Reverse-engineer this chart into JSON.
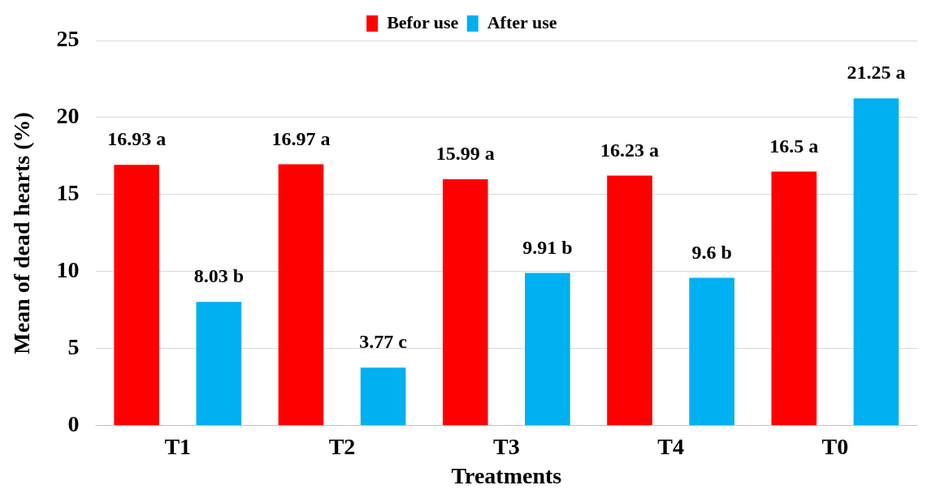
{
  "chart_data": {
    "type": "bar",
    "xlabel": "Treatments",
    "ylabel": "Mean of dead hearts (%)",
    "categories": [
      "T1",
      "T2",
      "T3",
      "T4",
      "T0"
    ],
    "series": [
      {
        "name": "Befor use",
        "color": "#ff0000",
        "values": [
          16.93,
          16.97,
          15.99,
          16.23,
          16.5
        ],
        "value_labels": [
          "16.93 a",
          "16.97 a",
          "15.99 a",
          "16.23 a",
          "16.5 a"
        ]
      },
      {
        "name": "After use",
        "color": "#00b0f0",
        "values": [
          8.03,
          3.77,
          9.91,
          9.6,
          21.25
        ],
        "value_labels": [
          "8.03 b",
          "3.77 c",
          "9.91 b",
          "9.6 b",
          "21.25 a"
        ]
      }
    ],
    "ylim": [
      0,
      25
    ],
    "yticks": [
      0,
      5,
      10,
      15,
      20,
      25
    ],
    "grid": "y",
    "legend": "top"
  }
}
